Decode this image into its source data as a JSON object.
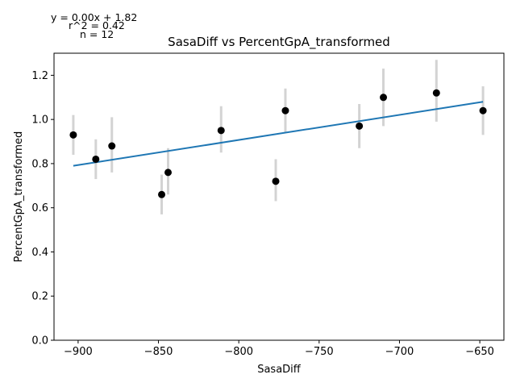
{
  "chart_data": {
    "type": "scatter",
    "title": "SasaDiff vs PercentGpA_transformed",
    "xlabel": "SasaDiff",
    "ylabel": "PercentGpA_transformed",
    "xlim": [
      -915,
      -635
    ],
    "ylim": [
      0.0,
      1.3
    ],
    "x_ticks": [
      -900,
      -850,
      -800,
      -750,
      -700,
      -650
    ],
    "x_tick_labels": [
      "−900",
      "−850",
      "−800",
      "−750",
      "−700",
      "−650"
    ],
    "y_ticks": [
      0.0,
      0.2,
      0.4,
      0.6,
      0.8,
      1.0,
      1.2
    ],
    "y_tick_labels": [
      "0.0",
      "0.2",
      "0.4",
      "0.6",
      "0.8",
      "1.0",
      "1.2"
    ],
    "grid": false,
    "legend": "none",
    "annotations": [
      "y = 0.00x + 1.82",
      "r^2 = 0.42",
      "n = 12"
    ],
    "points": [
      {
        "x": -903,
        "y": 0.93,
        "err_low": 0.84,
        "err_high": 1.02
      },
      {
        "x": -889,
        "y": 0.82,
        "err_low": 0.73,
        "err_high": 0.91
      },
      {
        "x": -879,
        "y": 0.88,
        "err_low": 0.76,
        "err_high": 1.01
      },
      {
        "x": -848,
        "y": 0.66,
        "err_low": 0.57,
        "err_high": 0.75
      },
      {
        "x": -844,
        "y": 0.76,
        "err_low": 0.66,
        "err_high": 0.87
      },
      {
        "x": -811,
        "y": 0.95,
        "err_low": 0.85,
        "err_high": 1.06
      },
      {
        "x": -777,
        "y": 0.72,
        "err_low": 0.63,
        "err_high": 0.82
      },
      {
        "x": -771,
        "y": 1.04,
        "err_low": 0.94,
        "err_high": 1.14
      },
      {
        "x": -725,
        "y": 0.97,
        "err_low": 0.87,
        "err_high": 1.07
      },
      {
        "x": -710,
        "y": 1.1,
        "err_low": 0.97,
        "err_high": 1.23
      },
      {
        "x": -677,
        "y": 1.12,
        "err_low": 0.99,
        "err_high": 1.27
      },
      {
        "x": -648,
        "y": 1.04,
        "err_low": 0.93,
        "err_high": 1.15
      }
    ],
    "fit_line": {
      "x": [
        -903,
        -648
      ],
      "y": [
        0.79,
        1.08
      ]
    },
    "colors": {
      "points": "#000000",
      "error_bars": "#d3d3d3",
      "fit_line": "#1f77b4",
      "axes": "#000000"
    }
  }
}
